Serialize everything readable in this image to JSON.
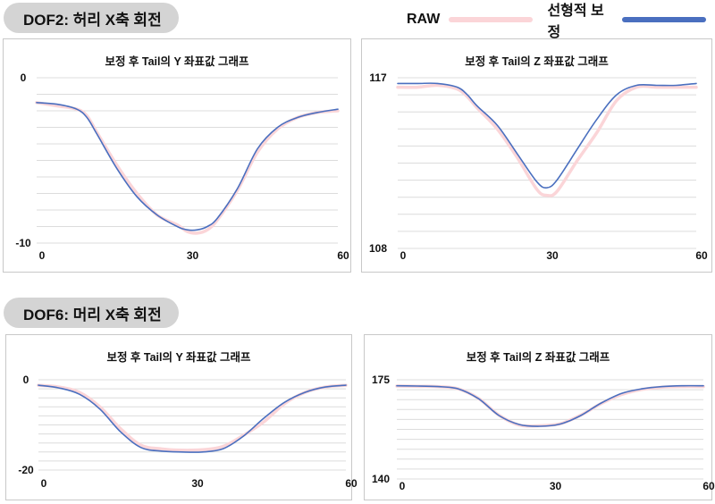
{
  "sections": [
    {
      "label": "DOF2: 허리 X축 회전"
    },
    {
      "label": "DOF6: 머리 X축 회전"
    }
  ],
  "legend": {
    "raw_label": "RAW",
    "corrected_label": "선형적 보정",
    "raw_color": "#fbd5d8",
    "corrected_color": "#4a6fbf"
  },
  "chart_data": [
    {
      "type": "line",
      "title": "보정 후 Tail의 Y 좌표값 그래프",
      "section": "DOF2: 허리 X축 회전",
      "xlim": [
        0,
        60
      ],
      "ylim": [
        -10,
        0
      ],
      "xticks": [
        "0",
        "30",
        "60"
      ],
      "yticks": [
        "0",
        "-10"
      ],
      "grid": true,
      "series": [
        {
          "name": "RAW",
          "color": "#fbd5d8",
          "x": [
            0,
            4,
            8,
            10,
            12,
            16,
            20,
            24,
            28,
            30,
            32,
            34,
            36,
            40,
            44,
            48,
            52,
            56,
            60
          ],
          "y": [
            -1.5,
            -1.7,
            -1.9,
            -2.3,
            -3.3,
            -5.3,
            -7.0,
            -8.3,
            -8.9,
            -9.3,
            -9.4,
            -9.2,
            -8.6,
            -6.8,
            -4.5,
            -3.1,
            -2.4,
            -2.1,
            -2.0
          ]
        },
        {
          "name": "선형적 보정",
          "color": "#4a6fbf",
          "x": [
            0,
            4,
            8,
            10,
            12,
            16,
            20,
            24,
            28,
            30,
            32,
            34,
            36,
            40,
            44,
            48,
            52,
            56,
            60
          ],
          "y": [
            -1.5,
            -1.6,
            -1.9,
            -2.4,
            -3.4,
            -5.5,
            -7.2,
            -8.3,
            -9.0,
            -9.2,
            -9.2,
            -9.0,
            -8.5,
            -6.7,
            -4.3,
            -3.0,
            -2.4,
            -2.1,
            -1.9
          ]
        }
      ]
    },
    {
      "type": "line",
      "title": "보정 후 Tail의 Z 좌표값 그래프",
      "section": "DOF2: 허리 X축 회전",
      "xlim": [
        0,
        60
      ],
      "ylim": [
        108,
        117
      ],
      "xticks": [
        "0",
        "30",
        "60"
      ],
      "yticks": [
        "117",
        "108"
      ],
      "grid": true,
      "series": [
        {
          "name": "RAW",
          "color": "#fbd5d8",
          "x": [
            0,
            4,
            8,
            12,
            14,
            16,
            20,
            24,
            28,
            30,
            32,
            36,
            40,
            44,
            48,
            52,
            56,
            60
          ],
          "y": [
            116.5,
            116.5,
            116.6,
            116.4,
            116.0,
            115.4,
            114.3,
            112.8,
            111.1,
            110.8,
            111.0,
            112.6,
            114.1,
            115.8,
            116.5,
            116.5,
            116.5,
            116.5
          ]
        },
        {
          "name": "선형적 보정",
          "color": "#4a6fbf",
          "x": [
            0,
            4,
            8,
            12,
            14,
            16,
            20,
            24,
            28,
            30,
            32,
            36,
            40,
            44,
            48,
            52,
            56,
            60
          ],
          "y": [
            116.7,
            116.7,
            116.7,
            116.5,
            116.1,
            115.5,
            114.5,
            113.0,
            111.5,
            111.2,
            111.6,
            113.2,
            114.8,
            116.1,
            116.6,
            116.6,
            116.6,
            116.7
          ]
        }
      ]
    },
    {
      "type": "line",
      "title": "보정 후 Tail의 Y 좌표값 그래프",
      "section": "DOF6: 머리 X축 회전",
      "xlim": [
        0,
        60
      ],
      "ylim": [
        -20,
        0
      ],
      "xticks": [
        "0",
        "30",
        "60"
      ],
      "yticks": [
        "0",
        "-20"
      ],
      "grid": true,
      "series": [
        {
          "name": "RAW",
          "color": "#fbd5d8",
          "x": [
            0,
            4,
            8,
            12,
            16,
            20,
            24,
            28,
            32,
            36,
            40,
            44,
            48,
            52,
            56,
            60
          ],
          "y": [
            -1.2,
            -1.6,
            -2.8,
            -6.0,
            -10.8,
            -14.5,
            -15.3,
            -15.6,
            -15.5,
            -14.8,
            -12.3,
            -9.3,
            -5.3,
            -2.8,
            -1.6,
            -1.2
          ]
        },
        {
          "name": "선형적 보정",
          "color": "#4a6fbf",
          "x": [
            0,
            4,
            8,
            12,
            16,
            20,
            24,
            28,
            32,
            36,
            40,
            44,
            48,
            52,
            56,
            60
          ],
          "y": [
            -1.2,
            -1.8,
            -3.2,
            -6.5,
            -11.5,
            -15.0,
            -15.8,
            -16.0,
            -16.0,
            -15.3,
            -12.5,
            -8.5,
            -5.0,
            -2.8,
            -1.6,
            -1.2
          ]
        }
      ]
    },
    {
      "type": "line",
      "title": "보정 후 Tail의 Z 좌표값 그래프",
      "section": "DOF6: 머리 X축 회전",
      "xlim": [
        0,
        60
      ],
      "ylim": [
        140,
        175
      ],
      "xticks": [
        "0",
        "30",
        "60"
      ],
      "yticks": [
        "175",
        "140"
      ],
      "grid": true,
      "series": [
        {
          "name": "RAW",
          "color": "#fbd5d8",
          "x": [
            0,
            4,
            8,
            12,
            16,
            20,
            24,
            28,
            32,
            36,
            40,
            44,
            48,
            52,
            56,
            60
          ],
          "y": [
            172.8,
            172.7,
            172.6,
            171.8,
            168.4,
            162.5,
            159.0,
            158.8,
            159.5,
            162.5,
            166.6,
            169.8,
            171.6,
            172.4,
            172.6,
            172.6
          ]
        },
        {
          "name": "선형적 보정",
          "color": "#4a6fbf",
          "x": [
            0,
            4,
            8,
            12,
            16,
            20,
            24,
            28,
            32,
            36,
            40,
            44,
            48,
            52,
            56,
            60
          ],
          "y": [
            172.9,
            172.8,
            172.6,
            171.8,
            168.3,
            162.4,
            159.2,
            158.6,
            159.4,
            162.4,
            166.8,
            170.2,
            171.8,
            172.6,
            172.9,
            172.9
          ]
        }
      ]
    }
  ]
}
